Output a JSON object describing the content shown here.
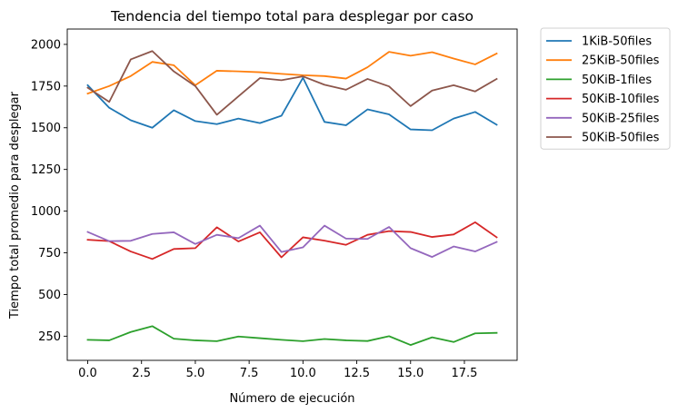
{
  "chart_data": {
    "type": "line",
    "title": "Tendencia del tiempo total para desplegar por caso",
    "xlabel": "Número de ejecución",
    "ylabel": "Tiempo total promedio para desplegar",
    "xlim": [
      -0.95,
      19.95
    ],
    "ylim": [
      105,
      2092
    ],
    "xticks": [
      0.0,
      2.5,
      5.0,
      7.5,
      10.0,
      12.5,
      15.0,
      17.5
    ],
    "xtick_labels": [
      "0.0",
      "2.5",
      "5.0",
      "7.5",
      "10.0",
      "12.5",
      "15.0",
      "17.5"
    ],
    "yticks": [
      250,
      500,
      750,
      1000,
      1250,
      1500,
      1750,
      2000
    ],
    "ytick_labels": [
      "250",
      "500",
      "750",
      "1000",
      "1250",
      "1500",
      "1750",
      "2000"
    ],
    "grid": false,
    "legend_position": "outside-top-right",
    "x": [
      0,
      1,
      2,
      3,
      4,
      5,
      6,
      7,
      8,
      9,
      10,
      11,
      12,
      13,
      14,
      15,
      16,
      17,
      18,
      19
    ],
    "series": [
      {
        "name": "1KiB-50files",
        "color": "#1f77b4",
        "values": [
          1755,
          1620,
          1545,
          1500,
          1605,
          1540,
          1522,
          1555,
          1528,
          1572,
          1800,
          1535,
          1515,
          1610,
          1580,
          1490,
          1485,
          1555,
          1595,
          1518
        ]
      },
      {
        "name": "25KiB-50files",
        "color": "#ff7f0e",
        "values": [
          1705,
          1750,
          1810,
          1895,
          1875,
          1755,
          1842,
          1838,
          1833,
          1823,
          1815,
          1810,
          1795,
          1863,
          1955,
          1932,
          1953,
          1915,
          1880,
          1945
        ]
      },
      {
        "name": "50KiB-1files",
        "color": "#2ca02c",
        "values": [
          228,
          225,
          275,
          310,
          235,
          225,
          220,
          248,
          238,
          228,
          220,
          233,
          225,
          221,
          250,
          197,
          243,
          215,
          267,
          270
        ]
      },
      {
        "name": "50KiB-10files",
        "color": "#d62728",
        "values": [
          828,
          820,
          758,
          713,
          773,
          778,
          903,
          818,
          873,
          723,
          843,
          823,
          798,
          858,
          880,
          875,
          845,
          860,
          933,
          843
        ]
      },
      {
        "name": "50KiB-25files",
        "color": "#9467bd",
        "values": [
          875,
          820,
          822,
          863,
          873,
          803,
          858,
          838,
          913,
          755,
          783,
          913,
          835,
          833,
          905,
          778,
          725,
          788,
          758,
          815
        ]
      },
      {
        "name": "50KiB-50files",
        "color": "#8c564b",
        "values": [
          1740,
          1655,
          1910,
          1960,
          1838,
          1750,
          1578,
          1688,
          1798,
          1785,
          1808,
          1758,
          1728,
          1793,
          1748,
          1630,
          1723,
          1755,
          1718,
          1793
        ]
      }
    ]
  }
}
